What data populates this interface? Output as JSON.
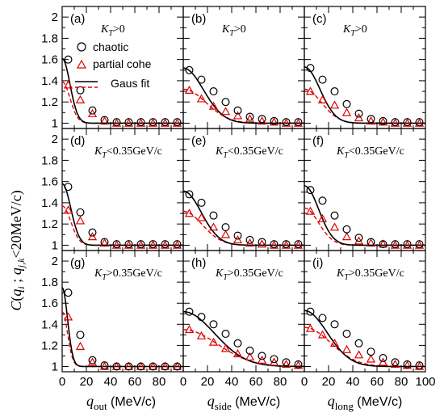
{
  "chart_data": {
    "type": "scatter",
    "layout": "3x3 grid of panels",
    "ylabel": "C(q_i ; q_j,k <20MeV/c)",
    "ylim": [
      0.95,
      2.1
    ],
    "yticks": [
      1,
      1.2,
      1.4,
      1.6,
      1.8,
      2
    ],
    "ytick_labels": [
      "1",
      "1.2",
      "1.4",
      "1.6",
      "1.8",
      "2"
    ],
    "xlim": [
      0,
      100
    ],
    "xticks": [
      0,
      20,
      40,
      60,
      80,
      100
    ],
    "xtick_labels": [
      "0",
      "20",
      "40",
      "60",
      "80",
      "100"
    ],
    "xtick_labels_visible": [
      "0",
      "20",
      "40",
      "60",
      "80",
      "0",
      "20",
      "40",
      "60",
      "80",
      "0",
      "20",
      "40",
      "60",
      "80",
      "100"
    ],
    "column_xlabels": [
      {
        "sym": "q",
        "sub": "out",
        "unit": " (MeV/c)"
      },
      {
        "sym": "q",
        "sub": "side",
        "unit": " (MeV/c)"
      },
      {
        "sym": "q",
        "sub": "long",
        "unit": " (MeV/c)"
      }
    ],
    "legend": {
      "placement": "panel (a), left",
      "entries": [
        {
          "label": "chaotic",
          "marker": "circle",
          "color": "#000000"
        },
        {
          "label": "partial cohe",
          "marker": "triangle",
          "color": "#e00000"
        },
        {
          "label": "Gaus fit",
          "line": "solid+dashed"
        }
      ]
    },
    "x": [
      5,
      15,
      25,
      35,
      45,
      55,
      65,
      75,
      85,
      95
    ],
    "panels": [
      {
        "id": "a",
        "label": "(a)",
        "kt": ">0",
        "chaotic": [
          1.6,
          1.31,
          1.12,
          1.03,
          1.01,
          1.01,
          1.01,
          1.01,
          1.01,
          1.01
        ],
        "partial": [
          1.36,
          1.22,
          1.09,
          1.02,
          1.0,
          1.0,
          1.0,
          1.0,
          1.0,
          1.0
        ],
        "fit_chaotic": {
          "lambda": 0.61,
          "R_inv": 0.022
        },
        "fit_partial": {
          "lambda": 0.39,
          "R_inv": 0.022
        }
      },
      {
        "id": "b",
        "label": "(b)",
        "kt": ">0",
        "chaotic": [
          1.5,
          1.41,
          1.3,
          1.2,
          1.12,
          1.06,
          1.04,
          1.02,
          1.01,
          1.01
        ],
        "partial": [
          1.31,
          1.23,
          1.16,
          1.11,
          1.07,
          1.04,
          1.02,
          1.01,
          1.0,
          1.0
        ],
        "fit_chaotic": {
          "lambda": 0.52,
          "R_inv": 0.0085
        },
        "fit_partial": {
          "lambda": 0.32,
          "R_inv": 0.0075
        }
      },
      {
        "id": "c",
        "label": "(c)",
        "kt": ">0",
        "chaotic": [
          1.52,
          1.41,
          1.3,
          1.18,
          1.09,
          1.04,
          1.02,
          1.01,
          1.01,
          1.01
        ],
        "partial": [
          1.3,
          1.22,
          1.17,
          1.1,
          1.05,
          1.02,
          1.01,
          1.0,
          1.0,
          1.0
        ],
        "fit_chaotic": {
          "lambda": 0.53,
          "R_inv": 0.011
        },
        "fit_partial": {
          "lambda": 0.32,
          "R_inv": 0.01
        }
      },
      {
        "id": "d",
        "label": "(d)",
        "kt": "<0.35GeV/c",
        "chaotic": [
          1.55,
          1.31,
          1.12,
          1.03,
          1.01,
          1.01,
          1.01,
          1.01,
          1.01,
          1.01
        ],
        "partial": [
          1.33,
          1.23,
          1.08,
          1.02,
          1.0,
          1.0,
          1.0,
          1.0,
          1.0,
          1.0
        ],
        "fit_chaotic": {
          "lambda": 0.58,
          "R_inv": 0.02
        },
        "fit_partial": {
          "lambda": 0.37,
          "R_inv": 0.02
        }
      },
      {
        "id": "e",
        "label": "(e)",
        "kt": "<0.35GeV/c",
        "chaotic": [
          1.48,
          1.4,
          1.28,
          1.17,
          1.09,
          1.05,
          1.03,
          1.01,
          1.01,
          1.01
        ],
        "partial": [
          1.3,
          1.26,
          1.17,
          1.1,
          1.05,
          1.02,
          1.01,
          1.0,
          1.0,
          1.0
        ],
        "fit_chaotic": {
          "lambda": 0.51,
          "R_inv": 0.0095
        },
        "fit_partial": {
          "lambda": 0.32,
          "R_inv": 0.009
        }
      },
      {
        "id": "f",
        "label": "(f)",
        "kt": "<0.35GeV/c",
        "chaotic": [
          1.52,
          1.42,
          1.28,
          1.15,
          1.07,
          1.03,
          1.01,
          1.01,
          1.01,
          1.01
        ],
        "partial": [
          1.32,
          1.25,
          1.17,
          1.08,
          1.04,
          1.02,
          1.01,
          1.0,
          1.0,
          1.0
        ],
        "fit_chaotic": {
          "lambda": 0.56,
          "R_inv": 0.012
        },
        "fit_partial": {
          "lambda": 0.35,
          "R_inv": 0.012
        }
      },
      {
        "id": "g",
        "label": "(g)",
        "kt": ">0.35GeV/c",
        "chaotic": [
          1.7,
          1.3,
          1.06,
          1.01,
          1.0,
          1.0,
          1.0,
          1.0,
          1.0,
          1.0
        ],
        "partial": [
          1.47,
          1.19,
          1.04,
          1.0,
          1.0,
          1.0,
          1.0,
          1.0,
          1.0,
          1.0
        ],
        "fit_chaotic": {
          "lambda": 0.75,
          "R_inv": 0.032
        },
        "fit_partial": {
          "lambda": 0.52,
          "R_inv": 0.032
        }
      },
      {
        "id": "h",
        "label": "(h)",
        "kt": ">0.35GeV/c",
        "chaotic": [
          1.52,
          1.47,
          1.4,
          1.31,
          1.22,
          1.15,
          1.1,
          1.07,
          1.04,
          1.02
        ],
        "partial": [
          1.35,
          1.29,
          1.23,
          1.17,
          1.12,
          1.09,
          1.06,
          1.04,
          1.02,
          1.01
        ],
        "fit_chaotic": {
          "lambda": 0.52,
          "R_inv": 0.0055
        },
        "fit_partial": {
          "lambda": 0.35,
          "R_inv": 0.005
        }
      },
      {
        "id": "i",
        "label": "(i)",
        "kt": ">0.35GeV/c",
        "chaotic": [
          1.52,
          1.46,
          1.4,
          1.31,
          1.22,
          1.14,
          1.08,
          1.04,
          1.02,
          1.01
        ],
        "partial": [
          1.36,
          1.3,
          1.22,
          1.16,
          1.11,
          1.07,
          1.04,
          1.02,
          1.01,
          1.0
        ],
        "fit_chaotic": {
          "lambda": 0.53,
          "R_inv": 0.0075
        },
        "fit_partial": {
          "lambda": 0.37,
          "R_inv": 0.0065
        }
      }
    ]
  }
}
